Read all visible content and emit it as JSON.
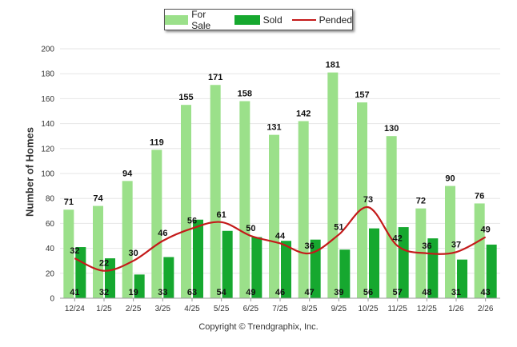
{
  "legend": {
    "for_sale": "For Sale",
    "sold": "Sold",
    "pended": "Pended"
  },
  "copyright": "Copyright © Trendgraphix, Inc.",
  "colors": {
    "for_sale": "#9be08a",
    "sold": "#16a82f",
    "pended": "#c41a1a"
  },
  "chart_data": {
    "type": "bar",
    "ylabel": "Number of Homes",
    "ylim": [
      0,
      200
    ],
    "yticks": [
      0,
      20,
      40,
      60,
      80,
      100,
      120,
      140,
      160,
      180,
      200
    ],
    "grid": true,
    "legend_position": "top-center",
    "categories": [
      "12/24",
      "1/25",
      "2/25",
      "3/25",
      "4/25",
      "5/25",
      "6/25",
      "7/25",
      "8/25",
      "9/25",
      "10/25",
      "11/25",
      "12/25",
      "1/26",
      "2/26"
    ],
    "series": [
      {
        "name": "For Sale",
        "type": "bar",
        "values": [
          71,
          74,
          94,
          119,
          155,
          171,
          158,
          131,
          142,
          181,
          157,
          130,
          72,
          90,
          76
        ]
      },
      {
        "name": "Sold",
        "type": "bar",
        "values": [
          41,
          32,
          19,
          33,
          63,
          54,
          49,
          46,
          47,
          39,
          56,
          57,
          48,
          31,
          43
        ]
      },
      {
        "name": "Pended",
        "type": "line",
        "values": [
          32,
          22,
          30,
          46,
          56,
          61,
          50,
          44,
          36,
          51,
          73,
          42,
          36,
          37,
          49
        ]
      }
    ]
  }
}
